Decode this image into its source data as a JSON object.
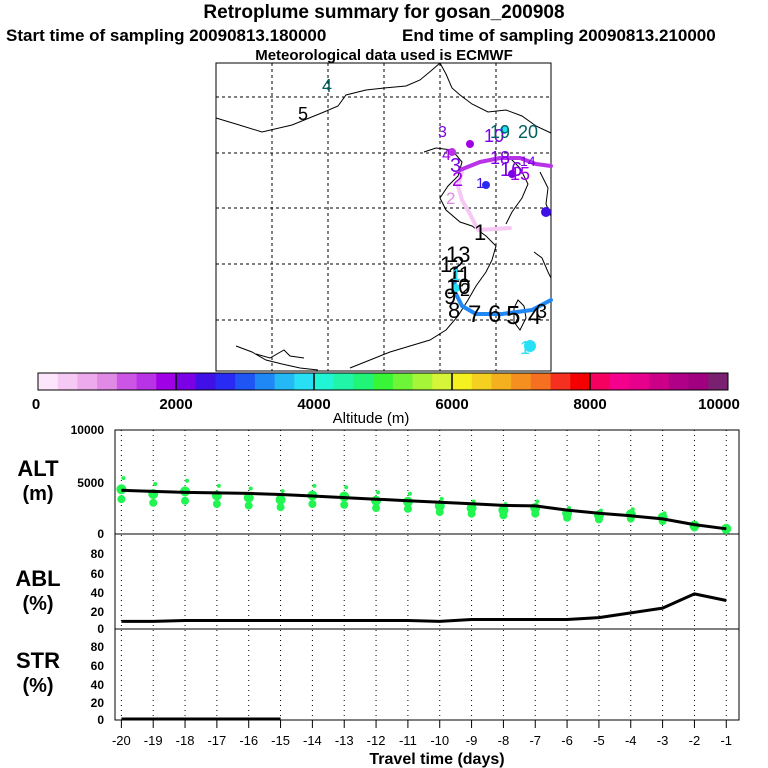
{
  "header": {
    "title": "Retroplume summary for gosan_200908",
    "start_label": "Start time of sampling 20090813.180000",
    "end_label": "End time of sampling 20090813.210000",
    "met_label": "Meteorological data used is ECMWF"
  },
  "colorbar": {
    "label": "Altitude (m)",
    "ticks": [
      "0",
      "2000",
      "4000",
      "6000",
      "8000",
      "10000"
    ],
    "colors": [
      "#fde6fb",
      "#f6c8f4",
      "#edaaed",
      "#e08ae6",
      "#cc55e6",
      "#b833e6",
      "#a000e6",
      "#7b00e6",
      "#4010e6",
      "#2a2af5",
      "#1f55f5",
      "#1f88f5",
      "#24b8f5",
      "#28e0f5",
      "#20f5d6",
      "#20f5a8",
      "#20f578",
      "#38f538",
      "#6ef538",
      "#a6f538",
      "#d6f538",
      "#f5f020",
      "#f5d020",
      "#f5b020",
      "#f59020",
      "#f57020",
      "#f53020",
      "#f50000",
      "#f50060",
      "#f5008c",
      "#e6008c",
      "#cc0088",
      "#b00088",
      "#a00080",
      "#7a2070"
    ]
  },
  "map": {
    "trajectory_labels": [
      "5",
      "4",
      "3",
      "4",
      "3",
      "2",
      "2",
      "1",
      "1",
      "10",
      "19",
      "20",
      "18",
      "16",
      "15",
      "14",
      "13",
      "12",
      "11",
      "10",
      "9",
      "8",
      "7",
      "6",
      "5",
      "4",
      "3",
      "2",
      "1",
      "1",
      "20",
      "19",
      "18",
      "17",
      "16"
    ]
  },
  "chart_data": [
    {
      "type": "line",
      "name": "ALT",
      "title": "ALT",
      "ylabel": "ALT (m)",
      "ylabel_line1": "ALT",
      "ylabel_line2": "(m)",
      "x": [
        -20,
        -19,
        -18,
        -17,
        -16,
        -15,
        -14,
        -13,
        -12,
        -11,
        -10,
        -9,
        -8,
        -7,
        -6,
        -5,
        -4,
        -3,
        -2,
        -1
      ],
      "xlim": [
        -20.2,
        -0.6
      ],
      "ylim": [
        0,
        10000
      ],
      "yticks": [
        "10000",
        "5000",
        "0"
      ],
      "series": [
        {
          "name": "plume mean altitude",
          "color": "#000000",
          "values": [
            4200,
            4100,
            4000,
            3950,
            3900,
            3800,
            3650,
            3500,
            3350,
            3200,
            3050,
            2900,
            2750,
            2700,
            2300,
            2000,
            1750,
            1450,
            900,
            500
          ]
        },
        {
          "name": "particle altitude",
          "color": "#20f550",
          "values": [
            4300,
            3850,
            4100,
            3700,
            3500,
            3300,
            3700,
            3600,
            3200,
            3100,
            2700,
            2500,
            2300,
            2500,
            2000,
            1800,
            1900,
            1600,
            800,
            500
          ]
        }
      ]
    },
    {
      "type": "line",
      "name": "ABL",
      "title": "ABL",
      "ylabel": "ABL (%)",
      "ylabel_line1": "ABL",
      "ylabel_line2": "(%)",
      "x": [
        -20,
        -19,
        -18,
        -17,
        -16,
        -15,
        -14,
        -13,
        -12,
        -11,
        -10,
        -9,
        -8,
        -7,
        -6,
        -5,
        -4,
        -3,
        -2,
        -1
      ],
      "xlim": [
        -20.2,
        -0.6
      ],
      "ylim": [
        0,
        100
      ],
      "yticks": [
        "80",
        "60",
        "40",
        "20",
        "0"
      ],
      "series": [
        {
          "name": "ABL fraction",
          "color": "#000000",
          "values": [
            8,
            8,
            9,
            9,
            9,
            9,
            9,
            9,
            9,
            9,
            8,
            10,
            10,
            10,
            10,
            12,
            17,
            22,
            37,
            30
          ]
        }
      ]
    },
    {
      "type": "line",
      "name": "STR",
      "title": "STR",
      "ylabel": "STR (%)",
      "ylabel_line1": "STR",
      "ylabel_line2": "(%)",
      "x": [
        -20,
        -19,
        -18,
        -17,
        -16,
        -15,
        -14,
        -13,
        -12,
        -11,
        -10,
        -9,
        -8,
        -7,
        -6,
        -5,
        -4,
        -3,
        -2,
        -1
      ],
      "xlim": [
        -20.2,
        -0.6
      ],
      "ylim": [
        0,
        100
      ],
      "yticks": [
        "80",
        "60",
        "40",
        "20",
        "0"
      ],
      "xlabel": "Travel time (days)",
      "xticks": [
        "-20",
        "-19",
        "-18",
        "-17",
        "-16",
        "-15",
        "-14",
        "-13",
        "-12",
        "-11",
        "-10",
        "-9",
        "-8",
        "-7",
        "-6",
        "-5",
        "-4",
        "-3",
        "-2",
        "-1"
      ],
      "series": [
        {
          "name": "STR fraction",
          "color": "#000000",
          "values": [
            0,
            0,
            0,
            0,
            0,
            0,
            0,
            0,
            0,
            0,
            0,
            0,
            0,
            0,
            0,
            0,
            0,
            0,
            0,
            0
          ]
        }
      ]
    }
  ]
}
